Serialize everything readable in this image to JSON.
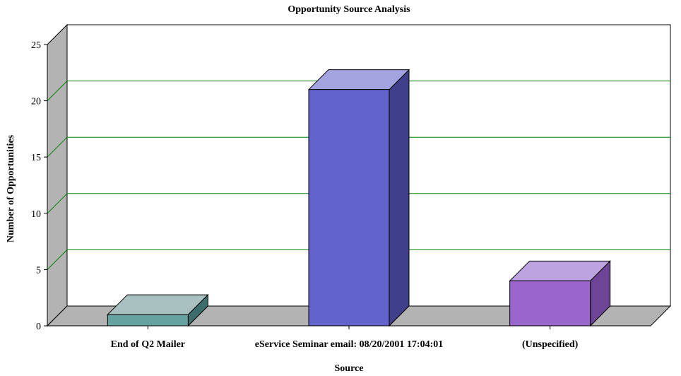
{
  "chart_data": {
    "type": "bar",
    "title": "Opportunity Source Analysis",
    "xlabel": "Source",
    "ylabel": "Number of Opportunities",
    "categories": [
      "End of Q2 Mailer",
      "eService Seminar email: 08/20/2001 17:04:01",
      "(Unspecified)"
    ],
    "values": [
      1,
      21,
      4
    ],
    "ylim": [
      0,
      25
    ],
    "yticks": [
      "0",
      "5",
      "10",
      "15",
      "20",
      "25"
    ],
    "grid": true,
    "legend": "none",
    "colors": {
      "bar_fronts": [
        "#66a3a0",
        "#6363cc",
        "#9966cc"
      ],
      "bar_tops": [
        "#a8c0c0",
        "#a3a3e0",
        "#bda3e0"
      ],
      "bar_sides": [
        "#3d6e6c",
        "#40408a",
        "#6e4496"
      ],
      "wall": "#b3b3b3",
      "gridline": "#008000",
      "plot_bg": "#ffffff"
    }
  }
}
